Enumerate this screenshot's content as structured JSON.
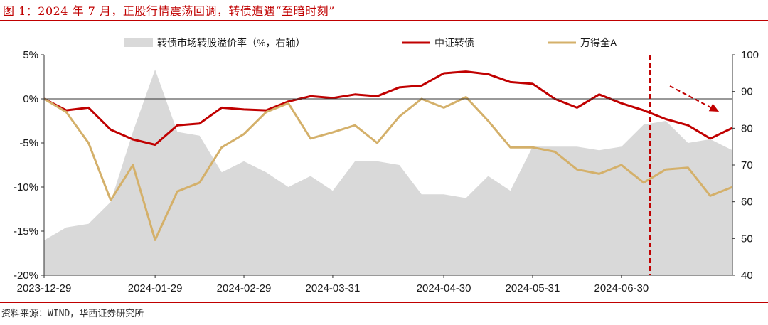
{
  "header": {
    "title": "图 1：2024 年 7 月，正股行情震荡回调，转债遭遇“至暗时刻”"
  },
  "footer": {
    "source": "资料来源：WIND，华西证券研究所"
  },
  "chart_data": {
    "type": "line",
    "x": [
      "2023-12-29",
      "2024-01-05",
      "2024-01-12",
      "2024-01-19",
      "2024-01-26",
      "2024-01-29",
      "2024-02-02",
      "2024-02-08",
      "2024-02-21",
      "2024-02-29",
      "2024-03-07",
      "2024-03-14",
      "2024-03-21",
      "2024-03-28",
      "2024-04-03",
      "2024-04-10",
      "2024-04-17",
      "2024-04-24",
      "2024-04-30",
      "2024-05-08",
      "2024-05-15",
      "2024-05-22",
      "2024-05-29",
      "2024-06-05",
      "2024-06-12",
      "2024-06-19",
      "2024-06-26",
      "2024-07-03",
      "2024-07-10",
      "2024-07-17",
      "2024-07-24",
      "2024-07-31"
    ],
    "x_ticks": [
      "2023-12-29",
      "2024-01-29",
      "2024-02-29",
      "2024-03-31",
      "2024-04-30",
      "2024-05-31",
      "2024-06-30"
    ],
    "x_tick_indices": [
      0,
      5,
      9,
      13,
      18,
      22,
      26
    ],
    "left_axis": {
      "ticks": [
        "5%",
        "0%",
        "-5%",
        "-10%",
        "-15%",
        "-20%"
      ],
      "ylim": [
        -20,
        5
      ]
    },
    "right_axis": {
      "ticks": [
        "100",
        "90",
        "80",
        "70",
        "60",
        "50",
        "40"
      ],
      "ylim": [
        40,
        100
      ]
    },
    "series": [
      {
        "name": "转债市场转股溢价率（%，右轴）",
        "kind": "area",
        "axis": "right",
        "color": "#d9d9d9",
        "values": [
          49.5,
          53,
          54,
          60,
          79,
          96,
          79,
          78,
          68,
          71,
          68,
          64,
          67,
          63,
          71,
          71,
          70,
          62,
          62,
          61,
          67,
          63,
          75,
          75,
          75,
          74,
          75,
          81,
          82,
          76,
          77,
          74
        ]
      },
      {
        "name": "中证转债",
        "kind": "line",
        "axis": "left",
        "color": "#c00000",
        "values": [
          0.0,
          -1.3,
          -1.0,
          -3.5,
          -4.6,
          -5.2,
          -3.0,
          -2.8,
          -1.0,
          -1.2,
          -1.3,
          -0.3,
          0.3,
          0.1,
          0.5,
          0.3,
          1.3,
          1.5,
          2.9,
          3.1,
          2.8,
          1.9,
          1.7,
          0.0,
          -1.0,
          0.5,
          -0.5,
          -1.3,
          -2.3,
          -3.0,
          -4.5,
          -3.3
        ]
      },
      {
        "name": "万得全A",
        "kind": "line",
        "axis": "left",
        "color": "#d4b06a",
        "values": [
          0.0,
          -1.5,
          -5.0,
          -11.5,
          -7.5,
          -16.0,
          -10.5,
          -9.5,
          -5.5,
          -4.0,
          -1.5,
          -0.5,
          -4.5,
          -3.8,
          -3.0,
          -5.0,
          -2.0,
          0.0,
          -1.0,
          0.2,
          -2.5,
          -5.5,
          -5.5,
          -6.0,
          -8.0,
          -8.5,
          -7.5,
          -9.5,
          -8.0,
          -7.8,
          -11.0,
          -10.0
        ]
      }
    ],
    "annotations": [
      {
        "type": "vertical-dashed-line",
        "x": "2024-07-05",
        "color": "#c00000"
      },
      {
        "type": "trend-arrow",
        "from": "2024-07-05",
        "to": "2024-07-29",
        "direction": "down",
        "color": "#c00000"
      }
    ],
    "legend": "top",
    "grid": false
  }
}
